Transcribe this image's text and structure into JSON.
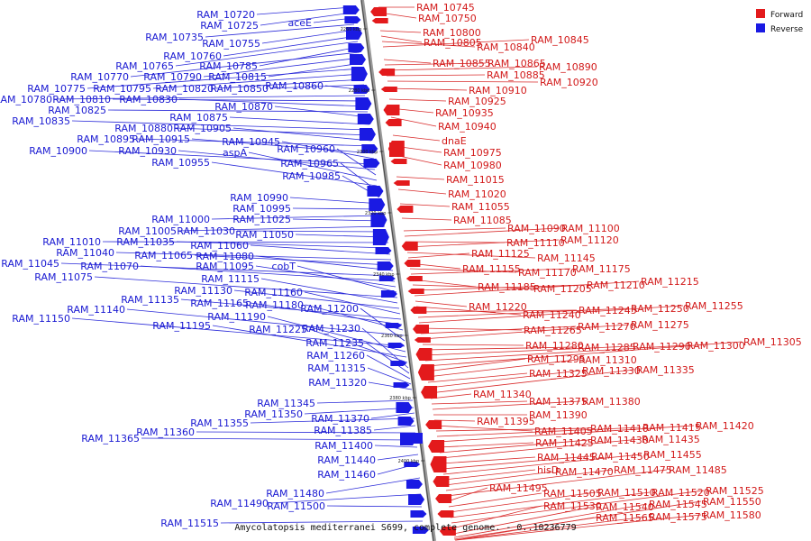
{
  "caption": "Amycolatopsis mediterranei S699, complete genome. - 0..10236779",
  "legend": [
    {
      "label": "Forward",
      "color": "#e31a1c"
    },
    {
      "label": "Reverse",
      "color": "#1a1ae3"
    }
  ],
  "ticks": [
    "2260 kbp",
    "2280 kbp",
    "2300 kbp",
    "2320 kbp",
    "2340 kbp",
    "2360 kbp",
    "2380 kbp",
    "2400 kbp"
  ],
  "reverse_labels": [
    "RAM_10720",
    "RAM_10725",
    "aceE",
    "RAM_10735",
    "RAM_10755",
    "RAM_10760",
    "RAM_10765",
    "RAM_10785",
    "RAM_10770",
    "RAM_10790",
    "RAM_10815",
    "RAM_10775",
    "RAM_10795",
    "RAM_10820",
    "RAM_10850",
    "RAM_10860",
    "RAM_10780",
    "RAM_10810",
    "RAM_10830",
    "RAM_10825",
    "RAM_10870",
    "RAM_10875",
    "RAM_10835",
    "RAM_10880",
    "RAM_10905",
    "RAM_10895",
    "RAM_10915",
    "RAM_10945",
    "RAM_10900",
    "RAM_10930",
    "RAM_10960",
    "aspA",
    "RAM_10955",
    "RAM_10965",
    "RAM_10985",
    "RAM_10990",
    "RAM_10995",
    "RAM_11000",
    "RAM_11025",
    "RAM_11005",
    "RAM_11030",
    "RAM_11050",
    "RAM_11010",
    "RAM_11035",
    "RAM_11060",
    "RAM_11040",
    "RAM_11065",
    "RAM_11080",
    "RAM_11045",
    "RAM_11070",
    "RAM_11095",
    "cobT",
    "RAM_11075",
    "RAM_11115",
    "RAM_11130",
    "RAM_11160",
    "RAM_11135",
    "RAM_11165",
    "RAM_11180",
    "RAM_11140",
    "RAM_11200",
    "RAM_11150",
    "RAM_11190",
    "RAM_11195",
    "RAM_11225",
    "RAM_11230",
    "RAM_11235",
    "RAM_11260",
    "RAM_11315",
    "RAM_11320",
    "RAM_11345",
    "RAM_11350",
    "RAM_11370",
    "RAM_11355",
    "RAM_11385",
    "RAM_11360",
    "RAM_11365",
    "RAM_11400",
    "RAM_11440",
    "RAM_11460",
    "RAM_11480",
    "RAM_11490",
    "RAM_11500",
    "RAM_11515"
  ],
  "forward_labels": [
    "RAM_10745",
    "RAM_10750",
    "RAM_10800",
    "RAM_10805",
    "RAM_10840",
    "RAM_10845",
    "RAM_10855",
    "RAM_10865",
    "RAM_10890",
    "RAM_10885",
    "RAM_10920",
    "RAM_10910",
    "RAM_10925",
    "RAM_10935",
    "RAM_10940",
    "dnaE",
    "RAM_10975",
    "RAM_10980",
    "RAM_11015",
    "RAM_11020",
    "RAM_11055",
    "RAM_11085",
    "RAM_11090",
    "RAM_11100",
    "RAM_11110",
    "RAM_11120",
    "RAM_11145",
    "RAM_11125",
    "RAM_11155",
    "RAM_11170",
    "RAM_11175",
    "RAM_11185",
    "RAM_11205",
    "RAM_11210",
    "RAM_11215",
    "RAM_11220",
    "RAM_11240",
    "RAM_11245",
    "RAM_11250",
    "RAM_11255",
    "RAM_11265",
    "RAM_11270",
    "RAM_11275",
    "RAM_11280",
    "RAM_11285",
    "RAM_11290",
    "RAM_11300",
    "RAM_11305",
    "RAM_11295",
    "RAM_11310",
    "RAM_11325",
    "RAM_11330",
    "RAM_11335",
    "RAM_11340",
    "RAM_11375",
    "RAM_11380",
    "RAM_11390",
    "RAM_11395",
    "RAM_11405",
    "RAM_11410",
    "RAM_11415",
    "RAM_11420",
    "RAM_11425",
    "RAM_11430",
    "RAM_11435",
    "RAM_11445",
    "RAM_11450",
    "RAM_11455",
    "hisD",
    "RAM_11470",
    "RAM_11475",
    "RAM_11485",
    "RAM_11495",
    "RAM_11505",
    "RAM_11510",
    "RAM_11520",
    "RAM_11525",
    "RAM_11530",
    "RAM_11540",
    "RAM_11545",
    "RAM_11550",
    "RAM_11565",
    "RAM_11575",
    "RAM_11580"
  ]
}
